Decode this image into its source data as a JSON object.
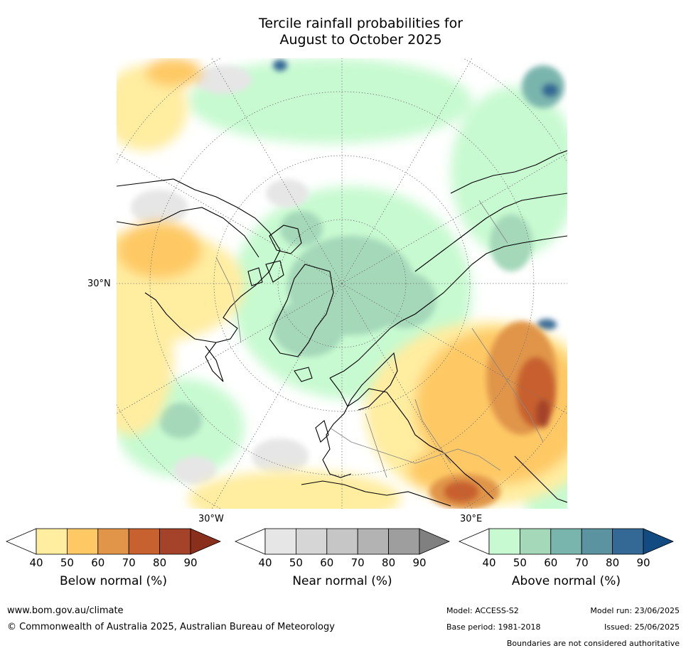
{
  "title_line1": "Tercile rainfall probabilities for",
  "title_line2": "August to October 2025",
  "map": {
    "lat_label": "30°N",
    "lon_label_west": "30°W",
    "lon_label_east": "30°E"
  },
  "colorbars": [
    {
      "label": "Below normal (%)",
      "ticks": [
        "40",
        "50",
        "60",
        "70",
        "80",
        "90"
      ],
      "colors": [
        "#ffffff",
        "#ffeda0",
        "#fec965",
        "#e09548",
        "#c7612f",
        "#a4432a",
        "#8a2f1c"
      ]
    },
    {
      "label": "Near normal (%)",
      "ticks": [
        "40",
        "50",
        "60",
        "70",
        "80",
        "90"
      ],
      "colors": [
        "#ffffff",
        "#e6e6e6",
        "#d6d6d6",
        "#c6c6c6",
        "#b3b3b3",
        "#9e9e9e",
        "#808080"
      ]
    },
    {
      "label": "Above normal (%)",
      "ticks": [
        "40",
        "50",
        "60",
        "70",
        "80",
        "90"
      ],
      "colors": [
        "#ffffff",
        "#c7fad0",
        "#a4d8b9",
        "#7ab5ad",
        "#5b93a1",
        "#356995",
        "#124b82"
      ]
    }
  ],
  "footer": {
    "website": "www.bom.gov.au/climate",
    "copyright": "© Commonwealth of Australia 2025, Australian Bureau of Meteorology",
    "model": "Model: ACCESS-S2",
    "base_period": "Base period: 1981-2018",
    "model_run": "Model run: 23/06/2025",
    "issued": "Issued: 25/06/2025",
    "disclaimer": "Boundaries are not considered authoritative"
  }
}
